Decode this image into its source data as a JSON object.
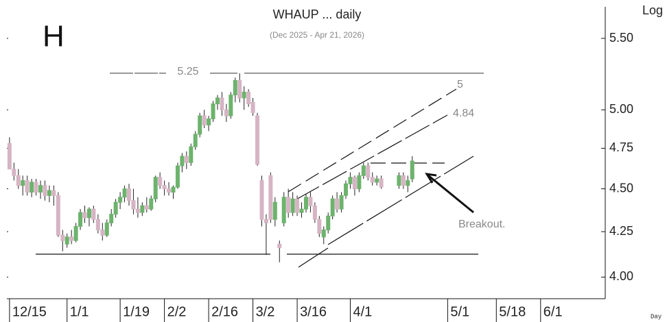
{
  "chart_data": {
    "type": "candlestick",
    "title": "WHAUP ... daily",
    "subtitle": "(Dec 2025 - Apr 21, 2026)",
    "scale_label": "Log",
    "period_label": "Day",
    "annotations": [
      "H",
      "5",
      "4.84",
      "Breakout."
    ],
    "hline": 5.25,
    "log_scale": true,
    "up_color": "#6db36d",
    "down_color": "#d6b4c4",
    "x": [
      0,
      1,
      2,
      3,
      4,
      5,
      6,
      7,
      8,
      9,
      10,
      11,
      12,
      13,
      14,
      15,
      16,
      17,
      18,
      19,
      20,
      21,
      22,
      23,
      24,
      25,
      26,
      27,
      28,
      29,
      30,
      31,
      32,
      33,
      34,
      35,
      36,
      37,
      38,
      39,
      40,
      41,
      42,
      43,
      44,
      45,
      46,
      47,
      48,
      49,
      50,
      51,
      52,
      53,
      54,
      55,
      56,
      57,
      58,
      59,
      60,
      61,
      62,
      63,
      64,
      65,
      66,
      67,
      68,
      69,
      70,
      71,
      72,
      73,
      74,
      75,
      76,
      77,
      78,
      79,
      80,
      81,
      82,
      83,
      84,
      88,
      89,
      90,
      91
    ],
    "open": [
      4.78,
      4.62,
      4.58,
      4.52,
      4.55,
      4.48,
      4.54,
      4.48,
      4.52,
      4.46,
      4.49,
      4.46,
      4.23,
      4.18,
      4.22,
      4.2,
      4.28,
      4.36,
      4.33,
      4.38,
      4.32,
      4.26,
      4.23,
      4.3,
      4.35,
      4.42,
      4.45,
      4.5,
      4.43,
      4.38,
      4.36,
      4.4,
      4.38,
      4.44,
      4.57,
      4.52,
      4.5,
      4.48,
      4.51,
      4.64,
      4.7,
      4.66,
      4.76,
      4.84,
      4.96,
      4.9,
      4.94,
      5.04,
      5.08,
      5.0,
      4.96,
      5.1,
      5.2,
      5.08,
      5.12,
      5.05,
      4.96,
      4.55,
      4.32,
      4.58,
      4.32,
      4.18,
      4.3,
      4.45,
      4.36,
      4.44,
      4.36,
      4.38,
      4.45,
      4.4,
      4.32,
      4.22,
      4.26,
      4.34,
      4.44,
      4.38,
      4.46,
      4.53,
      4.57,
      4.5,
      4.58,
      4.64,
      4.57,
      4.54,
      4.56,
      4.52,
      4.58,
      4.52,
      4.56
    ],
    "high": [
      4.82,
      4.66,
      4.62,
      4.58,
      4.58,
      4.56,
      4.56,
      4.55,
      4.55,
      4.52,
      4.52,
      4.48,
      4.26,
      4.24,
      4.26,
      4.3,
      4.38,
      4.4,
      4.39,
      4.4,
      4.35,
      4.3,
      4.32,
      4.38,
      4.44,
      4.48,
      4.52,
      4.53,
      4.5,
      4.45,
      4.42,
      4.45,
      4.46,
      4.58,
      4.6,
      4.55,
      4.54,
      4.52,
      4.66,
      4.72,
      4.73,
      4.78,
      4.86,
      4.98,
      5.0,
      4.96,
      5.06,
      5.1,
      5.12,
      5.04,
      5.12,
      5.22,
      5.25,
      5.16,
      5.14,
      5.08,
      4.98,
      4.58,
      4.35,
      4.6,
      4.45,
      4.2,
      4.48,
      4.5,
      4.48,
      4.46,
      4.42,
      4.47,
      4.48,
      4.42,
      4.34,
      4.28,
      4.36,
      4.46,
      4.48,
      4.48,
      4.55,
      4.6,
      4.58,
      4.6,
      4.66,
      4.66,
      4.6,
      4.58,
      4.58,
      4.6,
      4.6,
      4.58,
      4.7
    ],
    "low": [
      4.62,
      4.55,
      4.5,
      4.46,
      4.46,
      4.45,
      4.46,
      4.44,
      4.43,
      4.42,
      4.4,
      4.22,
      4.14,
      4.16,
      4.18,
      4.19,
      4.26,
      4.3,
      4.28,
      4.3,
      4.24,
      4.2,
      4.22,
      4.28,
      4.33,
      4.38,
      4.42,
      4.4,
      4.35,
      4.33,
      4.34,
      4.36,
      4.37,
      4.42,
      4.5,
      4.46,
      4.46,
      4.44,
      4.5,
      4.6,
      4.62,
      4.64,
      4.74,
      4.82,
      4.88,
      4.86,
      4.92,
      5.0,
      4.96,
      4.92,
      4.94,
      5.05,
      5.05,
      5.0,
      5.02,
      4.96,
      4.64,
      4.28,
      4.12,
      4.3,
      4.28,
      4.08,
      4.28,
      4.33,
      4.34,
      4.34,
      4.33,
      4.36,
      4.36,
      4.3,
      4.22,
      4.18,
      4.24,
      4.32,
      4.36,
      4.36,
      4.44,
      4.5,
      4.46,
      4.48,
      4.56,
      4.55,
      4.52,
      4.52,
      4.5,
      4.5,
      4.5,
      4.48,
      4.54
    ],
    "close": [
      4.62,
      4.58,
      4.52,
      4.55,
      4.48,
      4.54,
      4.48,
      4.52,
      4.46,
      4.49,
      4.46,
      4.23,
      4.2,
      4.22,
      4.2,
      4.28,
      4.36,
      4.33,
      4.38,
      4.32,
      4.26,
      4.23,
      4.3,
      4.35,
      4.42,
      4.45,
      4.5,
      4.43,
      4.38,
      4.36,
      4.4,
      4.38,
      4.44,
      4.57,
      4.52,
      4.5,
      4.48,
      4.51,
      4.64,
      4.7,
      4.66,
      4.76,
      4.84,
      4.96,
      4.9,
      4.94,
      5.04,
      5.08,
      5.0,
      4.96,
      5.1,
      5.2,
      5.08,
      5.12,
      5.04,
      4.98,
      4.65,
      4.32,
      4.3,
      4.32,
      4.42,
      4.16,
      4.45,
      4.36,
      4.44,
      4.36,
      4.38,
      4.45,
      4.4,
      4.32,
      4.24,
      4.26,
      4.34,
      4.44,
      4.38,
      4.46,
      4.53,
      4.57,
      4.5,
      4.58,
      4.64,
      4.57,
      4.54,
      4.56,
      4.51,
      4.58,
      4.52,
      4.55,
      4.67
    ],
    "xlim": [
      -0.6,
      134.3
    ],
    "ylim": [
      3.89,
      5.71
    ],
    "xticks": [
      {
        "value": 0,
        "label": "12/15"
      },
      {
        "value": 13,
        "label": "1/1"
      },
      {
        "value": 25,
        "label": "1/19"
      },
      {
        "value": 35,
        "label": "2/2"
      },
      {
        "value": 45,
        "label": "2/16"
      },
      {
        "value": 55,
        "label": "3/2"
      },
      {
        "value": 65,
        "label": "3/16"
      },
      {
        "value": 77,
        "label": "4/1"
      },
      {
        "value": 99,
        "label": "5/1"
      },
      {
        "value": 110,
        "label": "5/18"
      },
      {
        "value": 120,
        "label": "6/1"
      }
    ],
    "yticks": [
      {
        "value": 4.0,
        "label": "4.00"
      },
      {
        "value": 4.25,
        "label": "4.25"
      },
      {
        "value": 4.5,
        "label": "4.50"
      },
      {
        "value": 4.75,
        "label": "4.75"
      },
      {
        "value": 5.0,
        "label": "5.00"
      },
      {
        "value": 5.5,
        "label": "5.50"
      }
    ]
  }
}
